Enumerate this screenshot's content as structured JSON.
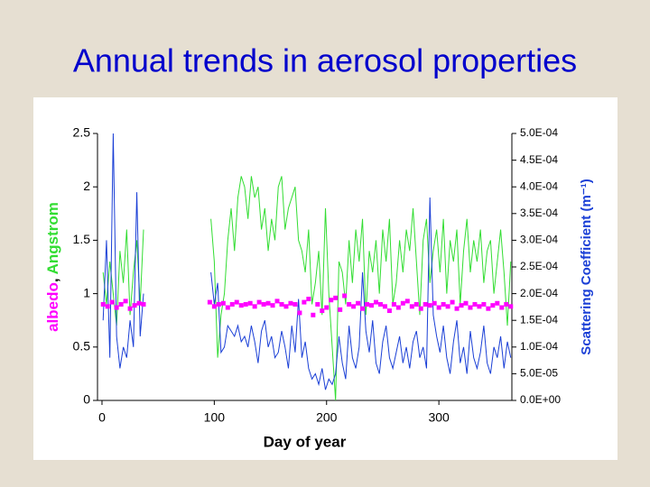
{
  "title": "Annual trends in aerosol properties",
  "chart_data": {
    "type": "line",
    "xlabel": "Day of year",
    "ylabel_separator": ",",
    "y2label": "Scattering Coefficient (m⁻¹)",
    "y2label_color": "#1a3fd6",
    "xlim": [
      -4,
      365
    ],
    "xticks": [
      0,
      100,
      200,
      300
    ],
    "ylim": [
      0,
      2.5
    ],
    "yticks": [
      0,
      0.5,
      1,
      1.5,
      2,
      2.5
    ],
    "y2lim": [
      0,
      0.0005
    ],
    "y2ticks": [
      {
        "value": 0,
        "label": "0.0E+00"
      },
      {
        "value": 5e-05,
        "label": "5.0E-05"
      },
      {
        "value": 0.0001,
        "label": "1.0E-04"
      },
      {
        "value": 0.00015,
        "label": "1.5E-04"
      },
      {
        "value": 0.0002,
        "label": "2.0E-04"
      },
      {
        "value": 0.00025,
        "label": "2.5E-04"
      },
      {
        "value": 0.0003,
        "label": "3.0E-04"
      },
      {
        "value": 0.00035,
        "label": "3.5E-04"
      },
      {
        "value": 0.0004,
        "label": "4.0E-04"
      },
      {
        "value": 0.00045,
        "label": "4.5E-04"
      },
      {
        "value": 0.0005,
        "label": "5.0E-04"
      }
    ],
    "x": [
      1,
      4,
      7,
      10,
      13,
      16,
      19,
      22,
      25,
      28,
      31,
      34,
      37,
      40,
      97,
      100,
      103,
      106,
      109,
      112,
      115,
      118,
      121,
      124,
      127,
      130,
      133,
      136,
      139,
      142,
      145,
      148,
      151,
      154,
      157,
      160,
      163,
      166,
      169,
      172,
      175,
      178,
      181,
      184,
      187,
      190,
      193,
      196,
      199,
      202,
      205,
      208,
      211,
      214,
      217,
      220,
      223,
      226,
      229,
      232,
      235,
      238,
      241,
      244,
      247,
      250,
      253,
      256,
      259,
      262,
      265,
      268,
      271,
      274,
      277,
      280,
      283,
      286,
      289,
      292,
      295,
      298,
      301,
      304,
      307,
      310,
      313,
      316,
      319,
      322,
      325,
      328,
      331,
      334,
      337,
      340,
      343,
      346,
      349,
      352,
      355,
      358,
      361,
      364
    ],
    "series": [
      {
        "name": "Angstrom",
        "color": "#33dd33",
        "values": [
          1.2,
          0.9,
          1.3,
          1.0,
          0.7,
          1.4,
          1.1,
          1.6,
          0.8,
          1.2,
          1.5,
          0.9,
          1.6,
          null,
          1.7,
          1.3,
          0.4,
          0.8,
          1.0,
          1.5,
          1.8,
          1.4,
          1.9,
          2.1,
          2.0,
          1.7,
          2.1,
          1.9,
          2.0,
          1.6,
          1.8,
          1.4,
          1.7,
          1.5,
          2.0,
          2.1,
          1.6,
          1.8,
          1.9,
          2.0,
          1.5,
          1.4,
          1.2,
          1.6,
          0.9,
          1.1,
          1.4,
          0.8,
          1.8,
          1.0,
          0.5,
          0.0,
          1.3,
          1.2,
          0.9,
          1.5,
          1.1,
          1.6,
          1.3,
          1.7,
          0.8,
          1.4,
          1.2,
          1.5,
          1.0,
          1.6,
          1.3,
          1.7,
          0.9,
          1.1,
          1.5,
          1.2,
          1.6,
          1.4,
          1.8,
          1.3,
          0.8,
          1.5,
          1.7,
          1.1,
          1.4,
          1.6,
          1.2,
          1.7,
          1.0,
          1.5,
          1.3,
          1.6,
          0.9,
          1.4,
          1.7,
          1.2,
          1.5,
          1.3,
          1.6,
          1.1,
          1.4,
          1.5,
          1.0,
          1.3,
          1.6,
          1.2,
          0.7,
          1.3
        ]
      },
      {
        "color": "#1a3fd6",
        "axis": "y2",
        "values": [
          0.00015,
          0.0003,
          8e-05,
          0.0005,
          0.00012,
          6e-05,
          0.0001,
          8e-05,
          0.00015,
          0.0001,
          0.00039,
          0.00012,
          0.0002,
          null,
          0.00024,
          0.00018,
          0.00022,
          9e-05,
          0.0001,
          0.00014,
          0.00013,
          0.00012,
          0.00014,
          0.00011,
          0.00012,
          0.0001,
          0.00014,
          0.00011,
          7e-05,
          0.00013,
          0.00015,
          0.0001,
          0.00012,
          8e-05,
          9e-05,
          0.00013,
          0.0001,
          6e-05,
          0.00014,
          9e-05,
          0.00019,
          8e-05,
          0.00011,
          6e-05,
          4e-05,
          5e-05,
          3e-05,
          6e-05,
          2e-05,
          4e-05,
          3e-05,
          5e-05,
          0.00012,
          7e-05,
          4e-05,
          0.00014,
          8e-05,
          6e-05,
          0.0001,
          0.00024,
          0.00013,
          9e-05,
          0.00015,
          7e-05,
          5e-05,
          0.00011,
          0.00014,
          8e-05,
          6e-05,
          9e-05,
          0.00012,
          7e-05,
          0.0001,
          6e-05,
          0.00011,
          0.00013,
          8e-05,
          0.0001,
          6e-05,
          0.00038,
          0.00016,
          0.00012,
          9e-05,
          0.00014,
          8e-05,
          5e-05,
          0.00011,
          0.00015,
          7e-05,
          0.0001,
          5e-05,
          0.00013,
          8e-05,
          6e-05,
          9e-05,
          0.00014,
          7e-05,
          5e-05,
          0.0001,
          8e-05,
          0.00012,
          6e-05,
          0.00011,
          8e-05
        ]
      },
      {
        "name": "albedo",
        "type": "scatter",
        "color": "#ff00ff",
        "x": [
          1,
          5,
          9,
          13,
          17,
          21,
          25,
          29,
          33,
          37,
          96,
          100,
          104,
          108,
          112,
          116,
          120,
          124,
          128,
          132,
          136,
          140,
          144,
          148,
          152,
          156,
          160,
          164,
          168,
          172,
          176,
          180,
          184,
          188,
          192,
          196,
          200,
          204,
          208,
          212,
          216,
          220,
          224,
          228,
          232,
          236,
          240,
          244,
          248,
          252,
          256,
          260,
          264,
          268,
          272,
          276,
          280,
          284,
          288,
          292,
          296,
          300,
          304,
          308,
          312,
          316,
          320,
          324,
          328,
          332,
          336,
          340,
          344,
          348,
          352,
          356,
          360,
          364
        ],
        "values": [
          0.9,
          0.88,
          0.92,
          0.87,
          0.9,
          0.93,
          0.86,
          0.89,
          0.91,
          0.9,
          0.92,
          0.88,
          0.9,
          0.91,
          0.87,
          0.9,
          0.92,
          0.89,
          0.9,
          0.91,
          0.88,
          0.92,
          0.9,
          0.91,
          0.89,
          0.93,
          0.9,
          0.88,
          0.91,
          0.9,
          0.82,
          0.92,
          0.95,
          0.8,
          0.9,
          0.84,
          0.87,
          0.94,
          0.96,
          0.85,
          0.98,
          0.9,
          0.88,
          0.91,
          0.86,
          0.9,
          0.89,
          0.92,
          0.9,
          0.88,
          0.84,
          0.9,
          0.87,
          0.91,
          0.93,
          0.88,
          0.9,
          0.86,
          0.9,
          0.89,
          0.91,
          0.87,
          0.9,
          0.88,
          0.92,
          0.86,
          0.89,
          0.91,
          0.87,
          0.9,
          0.88,
          0.9,
          0.86,
          0.89,
          0.91,
          0.87,
          0.9,
          0.88
        ]
      }
    ]
  }
}
